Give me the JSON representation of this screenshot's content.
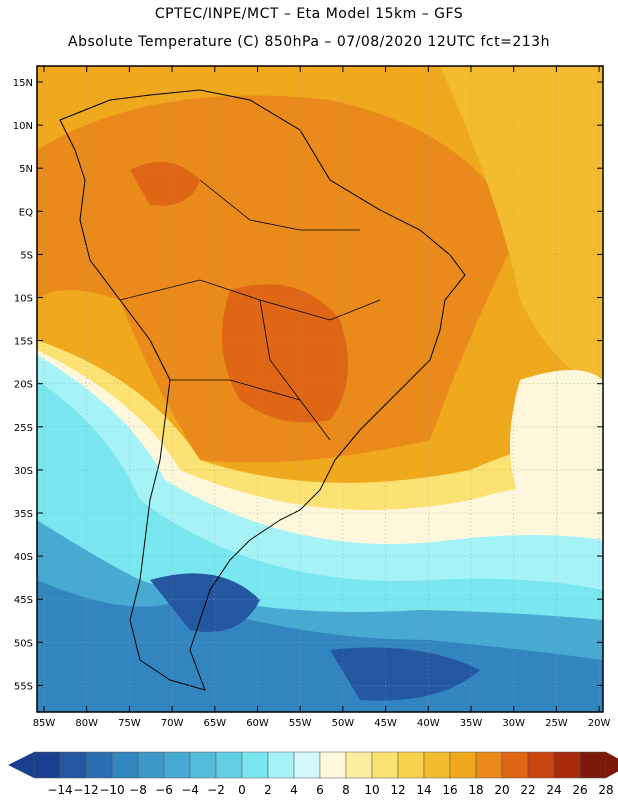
{
  "header": {
    "line1": "CPTEC/INPE/MCT –  Eta Model 15km – GFS",
    "line2": "Absolute Temperature (C) 850hPa – 07/08/2020 12UTC fct=213h"
  },
  "map": {
    "lat_labels": [
      "15N",
      "10N",
      "5N",
      "EQ",
      "5S",
      "10S",
      "15S",
      "20S",
      "25S",
      "30S",
      "35S",
      "40S",
      "45S",
      "50S",
      "55S"
    ],
    "lon_labels": [
      "85W",
      "80W",
      "75W",
      "70W",
      "65W",
      "60W",
      "55W",
      "50W",
      "45W",
      "40W",
      "35W",
      "30W",
      "25W",
      "20W"
    ]
  },
  "colorbar": {
    "labels": [
      "-14",
      "-12",
      "-10",
      "-8",
      "-6",
      "-4",
      "-2",
      "0",
      "2",
      "4",
      "6",
      "8",
      "10",
      "12",
      "14",
      "16",
      "18",
      "20",
      "22",
      "24",
      "26",
      "28"
    ],
    "colors": [
      "#1b3f8f",
      "#2357a0",
      "#2b6fb0",
      "#3385bf",
      "#3d98c9",
      "#48aad2",
      "#55bddb",
      "#62cfe4",
      "#79e6f0",
      "#a5f3f6",
      "#d3f7f8",
      "#fff7dc",
      "#fdeda0",
      "#fbe272",
      "#f8d24a",
      "#f2bb30",
      "#f0a81c",
      "#e98a1a",
      "#de6614",
      "#c9440f",
      "#a82a0c",
      "#7a1a0a"
    ],
    "end_low": "#1b3f8f",
    "end_high": "#7a1a0a"
  }
}
